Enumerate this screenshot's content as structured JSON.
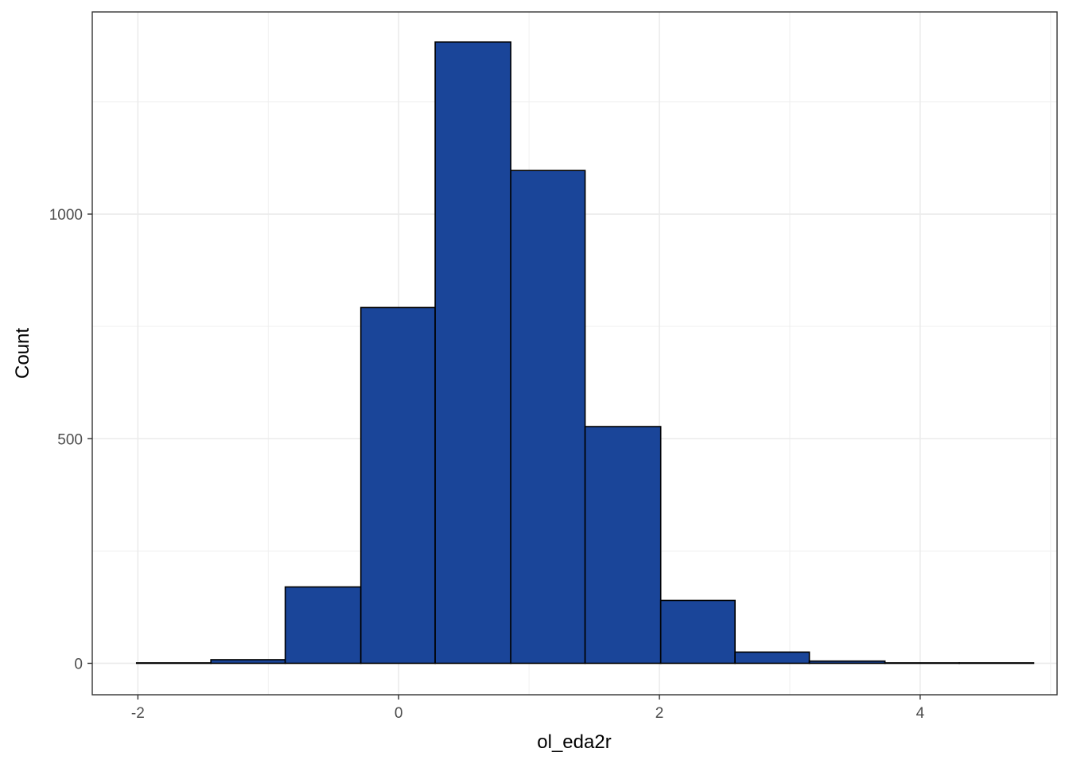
{
  "chart_data": {
    "type": "histogram",
    "xlabel": "ol_eda2r",
    "ylabel": "Count",
    "xlim": [
      -2.35,
      5.05
    ],
    "ylim": [
      -70,
      1450
    ],
    "x_ticks": [
      -2,
      0,
      2,
      4
    ],
    "x_tick_labels": [
      "-2",
      "0",
      "2",
      "4"
    ],
    "y_ticks": [
      0,
      500,
      1000
    ],
    "y_tick_labels": [
      "0",
      "500",
      "1000"
    ],
    "x_minor_grid": [
      -1,
      1,
      3,
      5
    ],
    "y_minor_grid": [
      250,
      750,
      1250
    ],
    "grid": true,
    "bar_color": "#1a4599",
    "bar_outline": "#000000",
    "bins": [
      {
        "x0": -2.01,
        "x1": -1.44,
        "count": 1
      },
      {
        "x0": -1.44,
        "x1": -0.87,
        "count": 8
      },
      {
        "x0": -0.87,
        "x1": -0.29,
        "count": 170
      },
      {
        "x0": -0.29,
        "x1": 0.28,
        "count": 792
      },
      {
        "x0": 0.28,
        "x1": 0.86,
        "count": 1383
      },
      {
        "x0": 0.86,
        "x1": 1.43,
        "count": 1097
      },
      {
        "x0": 1.43,
        "x1": 2.01,
        "count": 527
      },
      {
        "x0": 2.01,
        "x1": 2.58,
        "count": 140
      },
      {
        "x0": 2.58,
        "x1": 3.15,
        "count": 25
      },
      {
        "x0": 3.15,
        "x1": 3.73,
        "count": 5
      },
      {
        "x0": 3.73,
        "x1": 4.3,
        "count": 1
      },
      {
        "x0": 4.3,
        "x1": 4.87,
        "count": 1
      }
    ]
  }
}
